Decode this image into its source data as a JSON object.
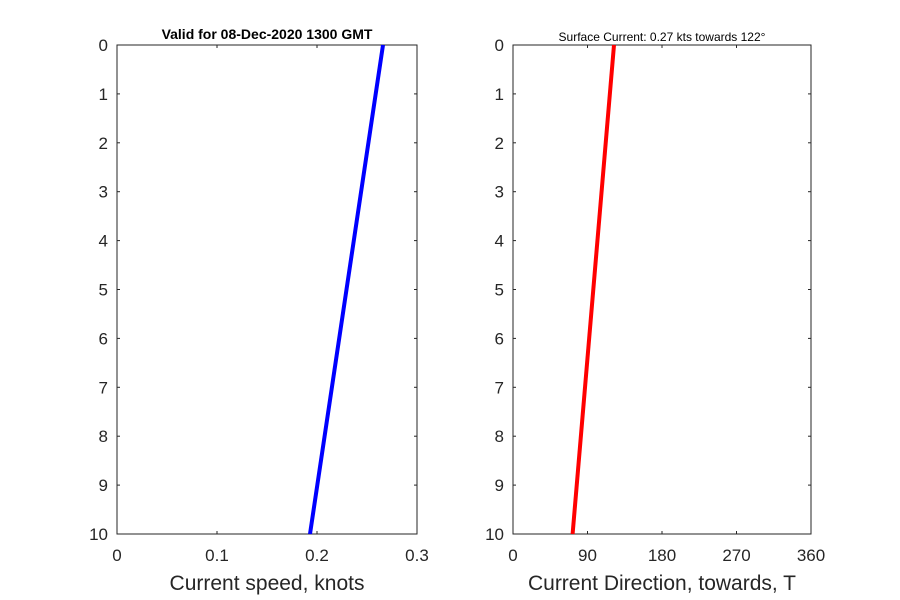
{
  "chart_data": [
    {
      "type": "line",
      "title": "Valid for 08-Dec-2020 1300 GMT",
      "xlabel": "Current speed, knots",
      "ylabel": "",
      "xlim": [
        0,
        0.3
      ],
      "ylim": [
        0,
        10
      ],
      "y_reversed": true,
      "x_ticks": [
        "0",
        "0.1",
        "0.2",
        "0.3"
      ],
      "y_ticks": [
        "0",
        "1",
        "2",
        "3",
        "4",
        "5",
        "6",
        "7",
        "8",
        "9",
        "10"
      ],
      "series": [
        {
          "color": "#0000ff",
          "points": [
            {
              "x": 0.266,
              "y": 0
            },
            {
              "x": 0.193,
              "y": 10
            }
          ]
        }
      ]
    },
    {
      "type": "line",
      "title": "Surface Current: 0.27 kts towards 122°",
      "xlabel": "Current Direction, towards, T",
      "ylabel": "",
      "xlim": [
        0,
        360
      ],
      "ylim": [
        0,
        10
      ],
      "y_reversed": true,
      "x_ticks": [
        "0",
        "90",
        "180",
        "270",
        "360"
      ],
      "y_ticks": [
        "0",
        "1",
        "2",
        "3",
        "4",
        "5",
        "6",
        "7",
        "8",
        "9",
        "10"
      ],
      "series": [
        {
          "color": "#ff0000",
          "points": [
            {
              "x": 122,
              "y": 0
            },
            {
              "x": 72,
              "y": 10
            }
          ]
        }
      ]
    }
  ]
}
